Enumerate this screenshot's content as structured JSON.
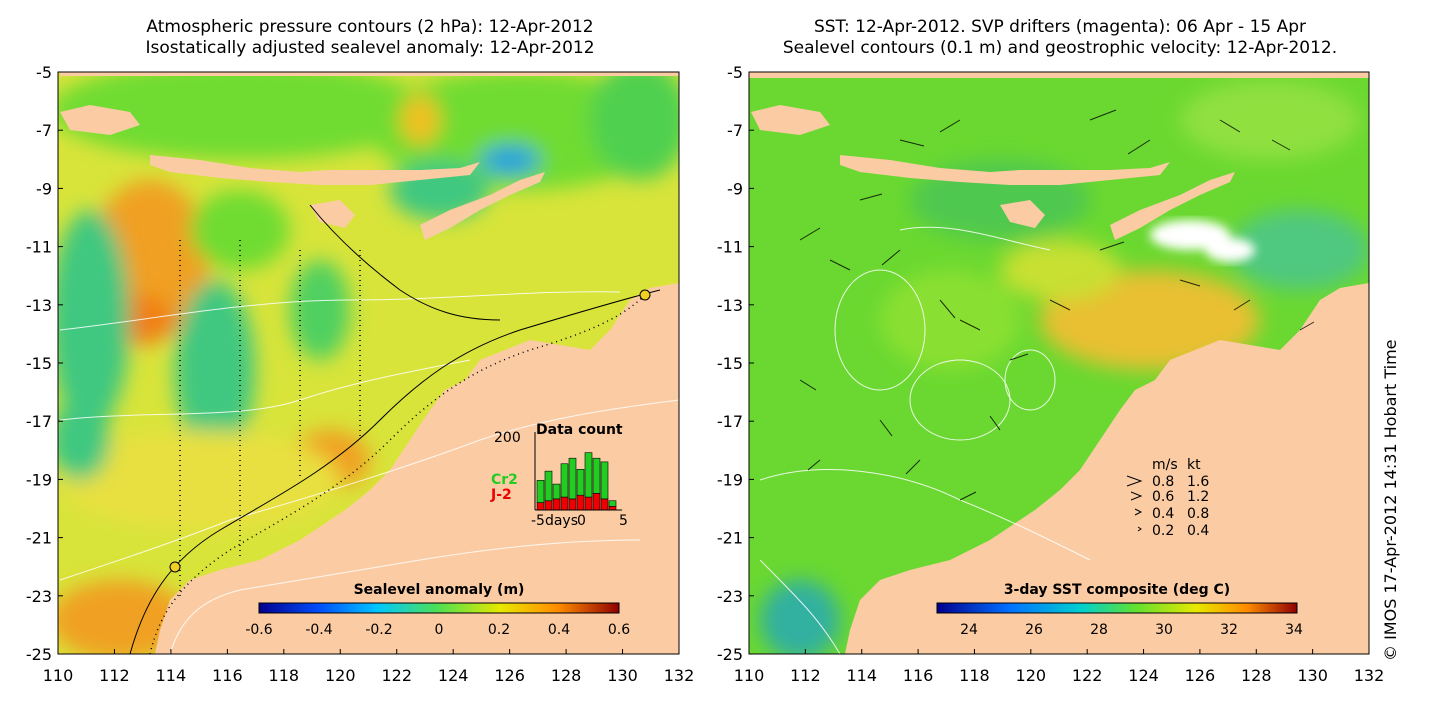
{
  "left_panel": {
    "title_line1": "Atmospheric pressure contours (2 hPa): 12-Apr-2012",
    "title_line2": "Isostatically adjusted sealevel anomaly: 12-Apr-2012",
    "colorbar": {
      "label": "Sealevel anomaly (m)",
      "ticks": [
        "-0.6",
        "-0.4",
        "-0.2",
        "0",
        "0.2",
        "0.4",
        "0.6"
      ]
    },
    "inset": {
      "title": "Data count",
      "ymax_label": "200",
      "series": [
        {
          "name": "Cr2",
          "color": "#22cc22"
        },
        {
          "name": "J-2",
          "color": "#ee0000"
        }
      ],
      "xlabels": [
        "-5days",
        "0",
        "5"
      ],
      "cr2_counts": [
        60,
        80,
        40,
        90,
        110,
        70,
        120,
        95,
        100,
        15
      ],
      "j2_counts": [
        20,
        25,
        30,
        35,
        30,
        40,
        35,
        45,
        30,
        10
      ]
    }
  },
  "right_panel": {
    "title_line1": "SST: 12-Apr-2012. SVP drifters (magenta): 06 Apr - 15 Apr",
    "title_line2": "Sealevel contours (0.1 m) and geostrophic velocity: 12-Apr-2012.",
    "colorbar": {
      "label": "3-day SST composite (deg C)",
      "ticks": [
        "24",
        "26",
        "28",
        "30",
        "32",
        "34"
      ]
    },
    "velocity_key": {
      "header_ms": "m/s",
      "header_kt": "kt",
      "rows": [
        {
          "ms": "0.8",
          "kt": "1.6"
        },
        {
          "ms": "0.6",
          "kt": "1.2"
        },
        {
          "ms": "0.4",
          "kt": "0.8"
        },
        {
          "ms": "0.2",
          "kt": "0.4"
        }
      ]
    }
  },
  "axes": {
    "lat_ticks": [
      "-5",
      "-7",
      "-9",
      "-11",
      "-13",
      "-15",
      "-17",
      "-19",
      "-21",
      "-23",
      "-25"
    ],
    "lon_ticks": [
      "110",
      "112",
      "114",
      "116",
      "118",
      "120",
      "122",
      "124",
      "126",
      "128",
      "130",
      "132"
    ]
  },
  "credit": "© IMOS 17-Apr-2012 14:31 Hobart Time",
  "colors": {
    "land": "#fbcca4",
    "ocean_green": "#7fe02a",
    "ocean_yellow": "#e8e82a",
    "ocean_orange": "#f5b522",
    "ocean_teal": "#3cc88a"
  }
}
